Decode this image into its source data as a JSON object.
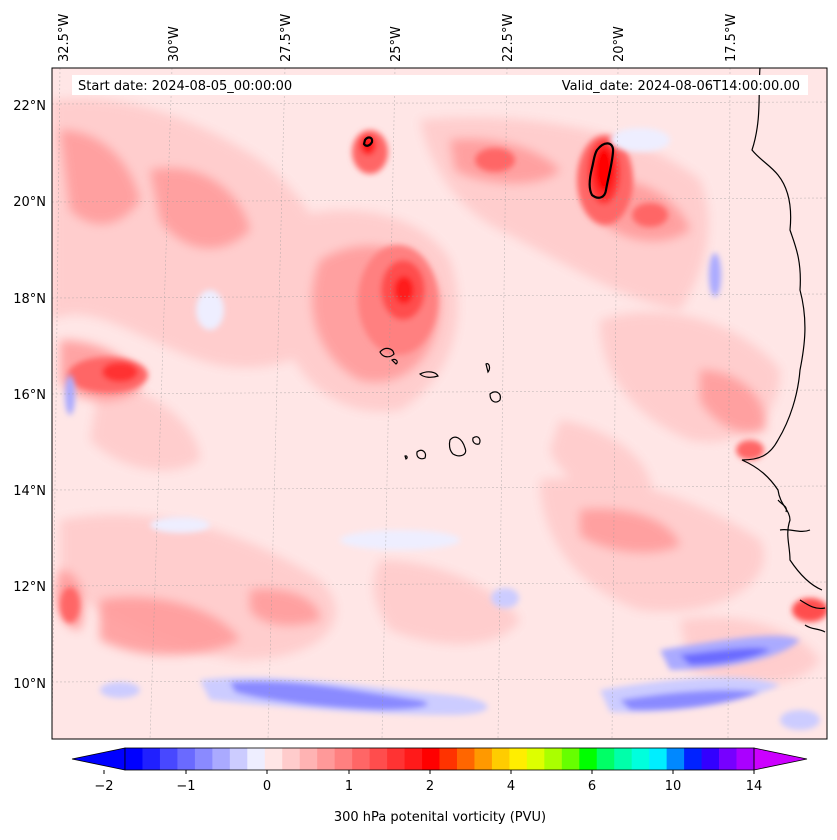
{
  "map": {
    "start_date": "Start date: 2024-08-05_00:00:00",
    "valid_date": "Valid_date: 2024-08-06T14:00:00.00",
    "lon_labels": [
      "32.5°W",
      "30°W",
      "27.5°W",
      "25°W",
      "22.5°W",
      "20°W",
      "17.5°W"
    ],
    "lat_labels": [
      "22°N",
      "20°N",
      "18°N",
      "16°N",
      "14°N",
      "12°N",
      "10°N"
    ]
  },
  "colorbar": {
    "label": "300 hPa potenital vorticity (PVU)",
    "tick_labels": [
      "−2",
      "−1",
      "0",
      "1",
      "2",
      "4",
      "6",
      "10",
      "14"
    ],
    "colors": [
      "#0000ff",
      "#2020ff",
      "#4848ff",
      "#6a6aff",
      "#8a8aff",
      "#aaaaff",
      "#ccccff",
      "#eeeeff",
      "#ffe6e6",
      "#ffcccc",
      "#ffb3b3",
      "#ff9999",
      "#ff8080",
      "#ff6666",
      "#ff4d4d",
      "#ff3333",
      "#ff1a1a",
      "#ff0000",
      "#ff3300",
      "#ff6600",
      "#ff9900",
      "#ffcc00",
      "#ffee00",
      "#ddff00",
      "#aaff00",
      "#66ff00",
      "#00ff00",
      "#00ff66",
      "#00ffaa",
      "#00ffdd",
      "#00eeff",
      "#0088ff",
      "#0022ff",
      "#3300ff",
      "#7700ff",
      "#aa00ff"
    ],
    "extend_low": "#0000ff",
    "extend_high": "#cc00ff"
  }
}
